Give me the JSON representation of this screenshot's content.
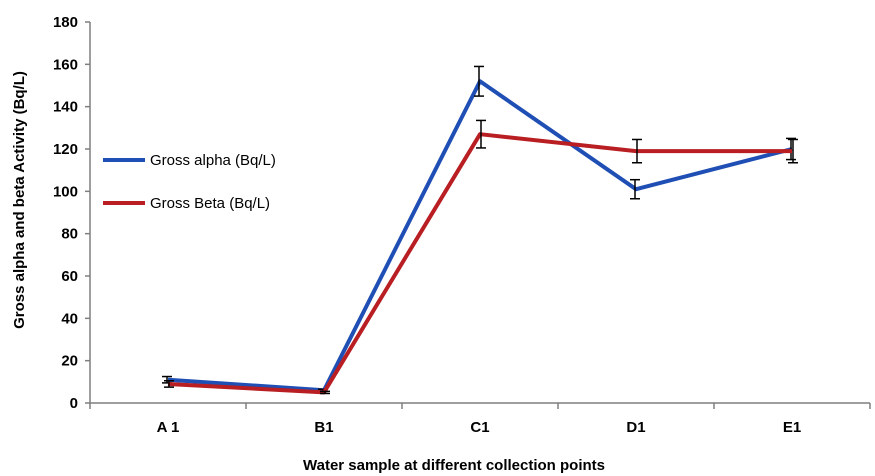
{
  "chart_data": {
    "type": "line",
    "title": "",
    "xlabel": "Water sample at different collection points",
    "ylabel": "Gross alpha and beta Activity (Bq/L)",
    "categories": [
      "A 1",
      "B1",
      "C1",
      "D1",
      "E1"
    ],
    "ylim": [
      0,
      180
    ],
    "yticks": [
      0,
      20,
      40,
      60,
      80,
      100,
      120,
      140,
      160,
      180
    ],
    "grid": false,
    "legend": "left",
    "series": [
      {
        "name": "Gross alpha (Bq/L)",
        "color": "#1f4fb4",
        "values": [
          11,
          6,
          152,
          101,
          120
        ],
        "errors": [
          1.5,
          0.5,
          7,
          4.5,
          5
        ]
      },
      {
        "name": "Gross Beta (Bq/L)",
        "color": "#b81e22",
        "values": [
          9,
          5,
          127,
          119,
          119
        ],
        "errors": [
          1.5,
          0.5,
          6.5,
          5.5,
          5.5
        ]
      }
    ]
  }
}
